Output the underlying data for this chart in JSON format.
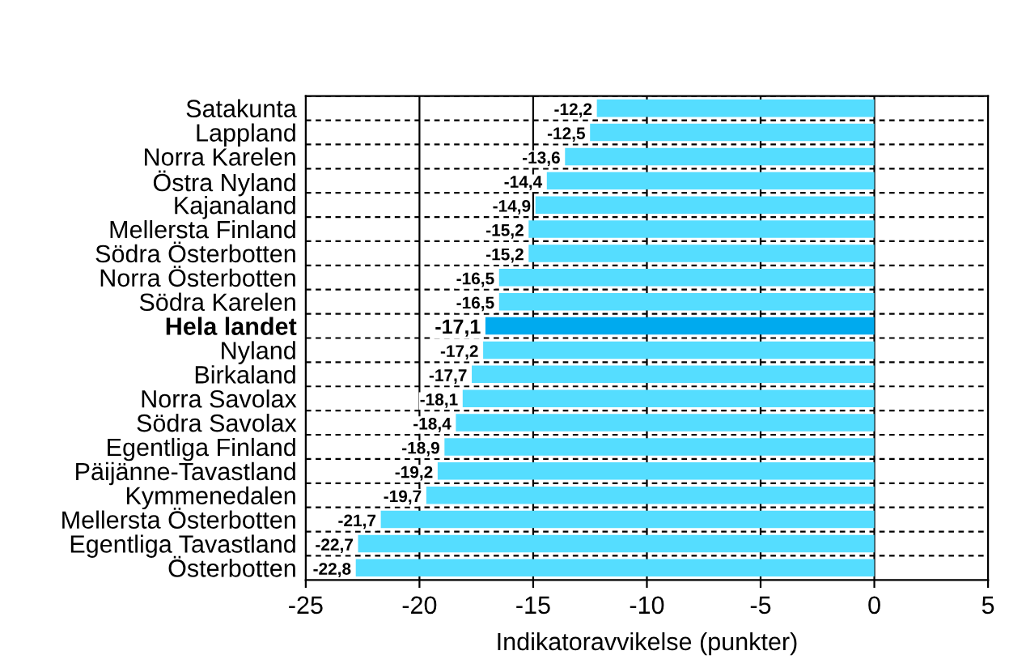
{
  "chart_data": {
    "type": "bar",
    "orientation": "horizontal",
    "xlabel": "Indikatoravvikelse (punkter)",
    "categories": [
      "Satakunta",
      "Lappland",
      "Norra Karelen",
      "Östra Nyland",
      "Kajanaland",
      "Mellersta Finland",
      "Södra Österbotten",
      "Norra Österbotten",
      "Södra Karelen",
      "Hela landet",
      "Nyland",
      "Birkaland",
      "Norra Savolax",
      "Södra Savolax",
      "Egentliga Finland",
      "Päijänne-Tavastland",
      "Kymmenedalen",
      "Mellersta Österbotten",
      "Egentliga Tavastland",
      "Österbotten"
    ],
    "values": [
      -12.2,
      -12.5,
      -13.6,
      -14.4,
      -14.9,
      -15.2,
      -15.2,
      -16.5,
      -16.5,
      -17.1,
      -17.2,
      -17.7,
      -18.1,
      -18.4,
      -18.9,
      -19.2,
      -19.7,
      -21.7,
      -22.7,
      -22.8
    ],
    "value_labels": [
      "-12,2",
      "-12,5",
      "-13,6",
      "-14,4",
      "-14,9",
      "-15,2",
      "-15,2",
      "-16,5",
      "-16,5",
      "-17,1",
      "-17,2",
      "-17,7",
      "-18,1",
      "-18,4",
      "-18,9",
      "-19,2",
      "-19,7",
      "-21,7",
      "-22,7",
      "-22,8"
    ],
    "color": "#55ddff",
    "colors": [
      "#55ddff",
      "#55ddff",
      "#55ddff",
      "#55ddff",
      "#55ddff",
      "#55ddff",
      "#55ddff",
      "#55ddff",
      "#55ddff",
      "#00aaee",
      "#55ddff",
      "#55ddff",
      "#55ddff",
      "#55ddff",
      "#55ddff",
      "#55ddff",
      "#55ddff",
      "#55ddff",
      "#55ddff",
      "#55ddff"
    ],
    "xlim": [
      -25,
      5
    ],
    "xticks": [
      -25,
      -20,
      -15,
      -10,
      -5,
      0,
      5
    ],
    "grid": true
  }
}
